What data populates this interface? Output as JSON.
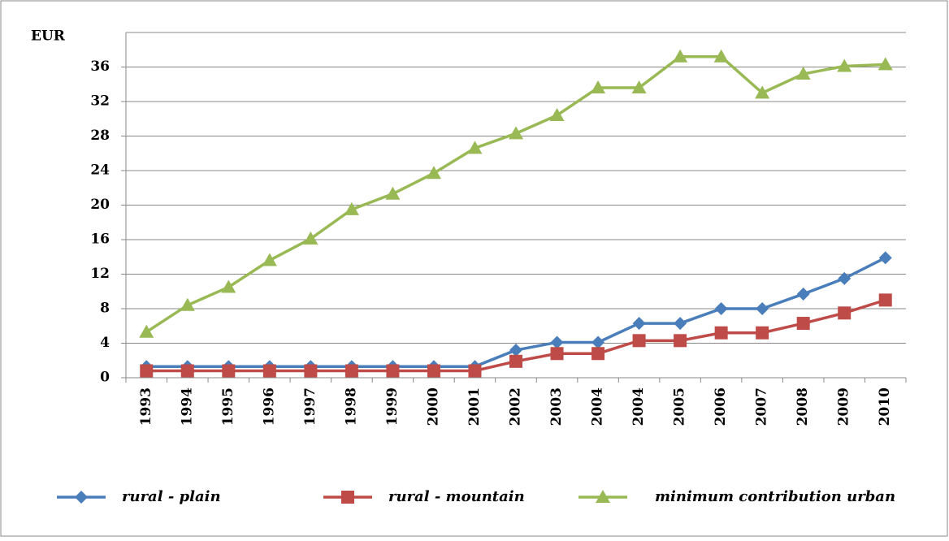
{
  "chart_data": {
    "type": "line",
    "y_label": "EUR",
    "categories": [
      "1993",
      "1994",
      "1995",
      "1996",
      "1997",
      "1998",
      "1999",
      "2000",
      "2001",
      "2002",
      "2003",
      "2004",
      "2004",
      "2005",
      "2006",
      "2007",
      "2008",
      "2009",
      "2010"
    ],
    "series": [
      {
        "name": "rural - plain",
        "color": "#4a7ebb",
        "marker": "diamond",
        "values": [
          1.3,
          1.3,
          1.3,
          1.3,
          1.3,
          1.3,
          1.3,
          1.3,
          1.3,
          3.2,
          4.1,
          4.1,
          6.3,
          6.3,
          8.0,
          8.0,
          9.7,
          11.5,
          13.9
        ]
      },
      {
        "name": "rural - mountain",
        "color": "#be4b48",
        "marker": "square",
        "values": [
          0.8,
          0.8,
          0.8,
          0.8,
          0.8,
          0.8,
          0.8,
          0.8,
          0.8,
          1.9,
          2.8,
          2.8,
          4.3,
          4.3,
          5.2,
          5.2,
          6.3,
          7.5,
          9.0
        ]
      },
      {
        "name": "minimum contribution urban",
        "color": "#98b954",
        "marker": "triangle",
        "values": [
          5.3,
          8.4,
          10.5,
          13.6,
          16.1,
          19.5,
          21.3,
          23.7,
          26.6,
          28.3,
          30.4,
          33.6,
          33.6,
          37.2,
          37.2,
          33.0,
          35.2,
          36.1,
          36.3
        ]
      }
    ],
    "ylim": [
      0,
      40
    ],
    "yticks": [
      0,
      4,
      8,
      12,
      16,
      20,
      24,
      28,
      32,
      36
    ],
    "grid": true,
    "legend": "bottom"
  }
}
